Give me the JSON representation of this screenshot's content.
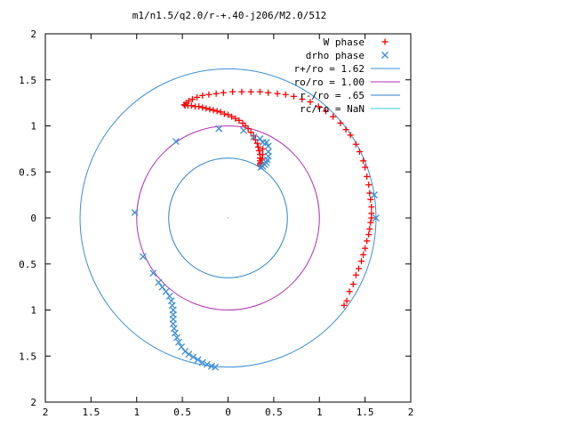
{
  "chart_data": {
    "type": "scatter",
    "title": "m1/n1.5/q2.0/r-+.40-j206/M2.0/512",
    "xlabel": "",
    "ylabel": "",
    "xlim": [
      -2,
      2
    ],
    "ylim": [
      -2,
      2
    ],
    "x_tick_labels": [
      "2",
      "1.5",
      "1",
      "0.5",
      "0",
      "0.5",
      "1",
      "1.5",
      "2"
    ],
    "y_tick_labels": [
      "2",
      "1.5",
      "1",
      "0.5",
      "0",
      "0.5",
      "1",
      "1.5",
      "2"
    ],
    "grid": false,
    "legend_position": "top-right",
    "center_point": [
      0,
      0
    ],
    "series": [
      {
        "name": "W phase",
        "kind": "points",
        "marker": "plus",
        "color": "#ff0000",
        "points": [
          [
            1.27,
            -0.95
          ],
          [
            1.3,
            -0.9
          ],
          [
            1.33,
            -0.8
          ],
          [
            1.37,
            -0.72
          ],
          [
            1.4,
            -0.62
          ],
          [
            1.43,
            -0.55
          ],
          [
            1.46,
            -0.47
          ],
          [
            1.48,
            -0.4
          ],
          [
            1.5,
            -0.33
          ],
          [
            1.52,
            -0.25
          ],
          [
            1.54,
            -0.18
          ],
          [
            1.55,
            -0.12
          ],
          [
            1.56,
            -0.05
          ],
          [
            1.57,
            0.0
          ],
          [
            1.57,
            0.05
          ],
          [
            1.57,
            0.12
          ],
          [
            1.56,
            0.2
          ],
          [
            1.55,
            0.27
          ],
          [
            1.54,
            0.36
          ],
          [
            1.52,
            0.45
          ],
          [
            1.5,
            0.55
          ],
          [
            1.48,
            0.62
          ],
          [
            1.44,
            0.72
          ],
          [
            1.4,
            0.8
          ],
          [
            1.34,
            0.9
          ],
          [
            1.29,
            0.96
          ],
          [
            1.23,
            1.03
          ],
          [
            1.15,
            1.1
          ],
          [
            1.07,
            1.16
          ],
          [
            0.99,
            1.21
          ],
          [
            0.9,
            1.26
          ],
          [
            0.81,
            1.29
          ],
          [
            0.72,
            1.32
          ],
          [
            0.63,
            1.34
          ],
          [
            0.54,
            1.35
          ],
          [
            0.44,
            1.36
          ],
          [
            0.35,
            1.37
          ],
          [
            0.25,
            1.37
          ],
          [
            0.15,
            1.37
          ],
          [
            0.05,
            1.37
          ],
          [
            -0.05,
            1.36
          ],
          [
            -0.13,
            1.35
          ],
          [
            -0.21,
            1.34
          ],
          [
            -0.28,
            1.33
          ],
          [
            -0.34,
            1.31
          ],
          [
            -0.39,
            1.29
          ],
          [
            -0.43,
            1.27
          ],
          [
            -0.46,
            1.25
          ],
          [
            -0.48,
            1.23
          ],
          [
            -0.47,
            1.22
          ],
          [
            -0.44,
            1.22
          ],
          [
            -0.4,
            1.22
          ],
          [
            -0.36,
            1.21
          ],
          [
            -0.32,
            1.21
          ],
          [
            -0.28,
            1.2
          ],
          [
            -0.24,
            1.19
          ],
          [
            -0.2,
            1.18
          ],
          [
            -0.16,
            1.17
          ],
          [
            -0.12,
            1.16
          ],
          [
            -0.08,
            1.15
          ],
          [
            -0.04,
            1.13
          ],
          [
            0.0,
            1.12
          ],
          [
            0.04,
            1.1
          ],
          [
            0.08,
            1.08
          ],
          [
            0.12,
            1.06
          ],
          [
            0.16,
            1.03
          ],
          [
            0.19,
            1.0
          ],
          [
            0.22,
            0.97
          ],
          [
            0.25,
            0.93
          ],
          [
            0.28,
            0.89
          ],
          [
            0.3,
            0.85
          ],
          [
            0.32,
            0.81
          ],
          [
            0.33,
            0.77
          ],
          [
            0.34,
            0.73
          ],
          [
            0.35,
            0.69
          ],
          [
            0.35,
            0.65
          ],
          [
            0.35,
            0.62
          ],
          [
            0.35,
            0.59
          ],
          [
            0.35,
            0.57
          ],
          [
            0.36,
            0.6
          ],
          [
            0.37,
            0.64
          ],
          [
            0.38,
            0.69
          ],
          [
            0.38,
            0.75
          ]
        ]
      },
      {
        "name": "drho phase",
        "kind": "points",
        "marker": "cross",
        "color": "#3b8fd4",
        "points": [
          [
            -0.57,
            0.83
          ],
          [
            -0.1,
            0.97
          ],
          [
            0.17,
            0.95
          ],
          [
            0.28,
            0.88
          ],
          [
            0.35,
            0.86
          ],
          [
            0.38,
            0.82
          ],
          [
            0.42,
            0.82
          ],
          [
            0.44,
            0.78
          ],
          [
            0.44,
            0.72
          ],
          [
            0.44,
            0.67
          ],
          [
            0.43,
            0.63
          ],
          [
            0.42,
            0.6
          ],
          [
            0.4,
            0.58
          ],
          [
            0.38,
            0.56
          ],
          [
            0.36,
            0.55
          ],
          [
            1.6,
            0.25
          ],
          [
            1.62,
            0.0
          ],
          [
            -1.02,
            0.06
          ],
          [
            -0.93,
            -0.42
          ],
          [
            -0.82,
            -0.6
          ],
          [
            -0.76,
            -0.7
          ],
          [
            -0.72,
            -0.75
          ],
          [
            -0.68,
            -0.8
          ],
          [
            -0.64,
            -0.85
          ],
          [
            -0.62,
            -0.9
          ],
          [
            -0.61,
            -0.95
          ],
          [
            -0.6,
            -1.0
          ],
          [
            -0.6,
            -1.05
          ],
          [
            -0.6,
            -1.1
          ],
          [
            -0.6,
            -1.15
          ],
          [
            -0.59,
            -1.2
          ],
          [
            -0.58,
            -1.25
          ],
          [
            -0.56,
            -1.3
          ],
          [
            -0.54,
            -1.35
          ],
          [
            -0.51,
            -1.4
          ],
          [
            -0.47,
            -1.45
          ],
          [
            -0.43,
            -1.48
          ],
          [
            -0.38,
            -1.51
          ],
          [
            -0.33,
            -1.54
          ],
          [
            -0.28,
            -1.57
          ],
          [
            -0.23,
            -1.59
          ],
          [
            -0.18,
            -1.61
          ],
          [
            -0.14,
            -1.62
          ]
        ]
      },
      {
        "name": "r+/ro = 1.62",
        "kind": "circle",
        "radius": 1.62,
        "color": "#3b8fd4"
      },
      {
        "name": "ro/ro = 1.00",
        "kind": "circle",
        "radius": 1.0,
        "color": "#b030b0"
      },
      {
        "name": "r-/ro = .65",
        "kind": "circle",
        "radius": 0.65,
        "color": "#2a82c8"
      },
      {
        "name": "rc/ro = NaN",
        "kind": "legend-only",
        "color": "#2ed0d0"
      }
    ]
  }
}
